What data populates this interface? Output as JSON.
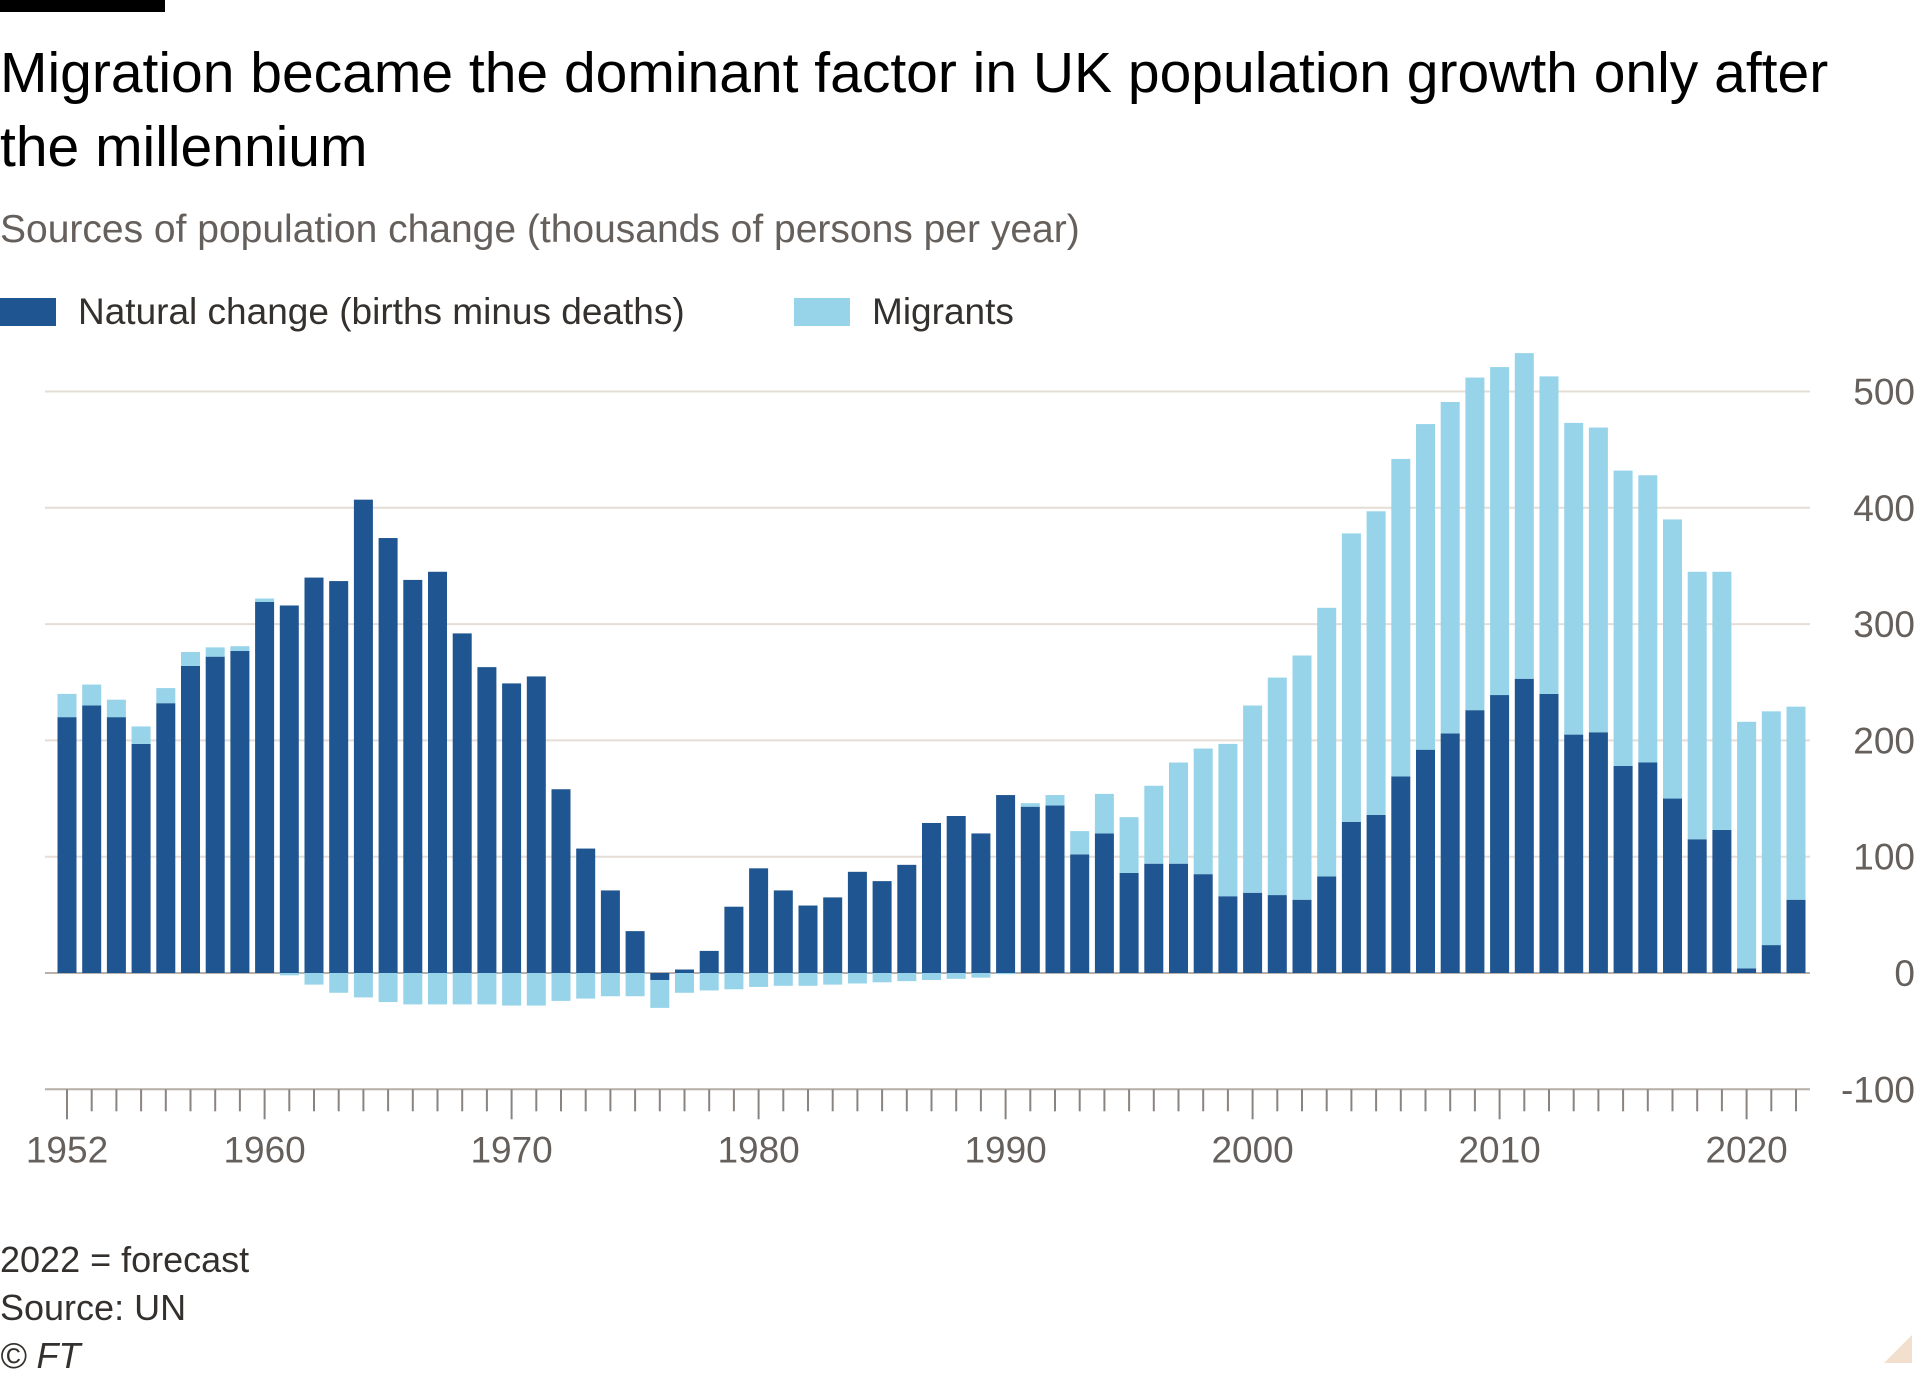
{
  "title": "Migration became the dominant factor in UK population growth only after the millennium",
  "subtitle": "Sources of population change (thousands of persons per year)",
  "legend": {
    "natural": "Natural change (births minus deaths)",
    "migrants": "Migrants"
  },
  "colors": {
    "natural": "#1f5590",
    "migrants": "#97d4ea",
    "grid": "#e6ddd6",
    "axis_text": "#66605c",
    "tick": "#8a8480"
  },
  "notes": {
    "forecast": "2022 = forecast",
    "source": "Source: UN",
    "copyright": "© FT"
  },
  "chart_data": {
    "type": "bar",
    "stacked": true,
    "x_label_years": [
      "1952",
      "1960",
      "1970",
      "1980",
      "1990",
      "2000",
      "2010",
      "2020"
    ],
    "y_ticks": [
      "500",
      "400",
      "300",
      "200",
      "100",
      "0",
      "-100"
    ],
    "ylim": [
      -100,
      500
    ],
    "grid": true,
    "y_axis_side": "right",
    "x": [
      1952,
      1953,
      1954,
      1955,
      1956,
      1957,
      1958,
      1959,
      1960,
      1961,
      1962,
      1963,
      1964,
      1965,
      1966,
      1967,
      1968,
      1969,
      1970,
      1971,
      1972,
      1973,
      1974,
      1975,
      1976,
      1977,
      1978,
      1979,
      1980,
      1981,
      1982,
      1983,
      1984,
      1985,
      1986,
      1987,
      1988,
      1989,
      1990,
      1991,
      1992,
      1993,
      1994,
      1995,
      1996,
      1997,
      1998,
      1999,
      2000,
      2001,
      2002,
      2003,
      2004,
      2005,
      2006,
      2007,
      2008,
      2009,
      2010,
      2011,
      2012,
      2013,
      2014,
      2015,
      2016,
      2017,
      2018,
      2019,
      2020,
      2021,
      2022
    ],
    "series": [
      {
        "name": "Natural change (births minus deaths)",
        "values": [
          220,
          230,
          220,
          197,
          232,
          264,
          272,
          277,
          319,
          316,
          340,
          337,
          407,
          374,
          338,
          345,
          292,
          263,
          249,
          255,
          158,
          107,
          71,
          36,
          -6,
          3,
          19,
          57,
          90,
          71,
          58,
          65,
          87,
          79,
          93,
          129,
          135,
          120,
          153,
          143,
          144,
          102,
          120,
          86,
          94,
          94,
          85,
          66,
          69,
          67,
          63,
          83,
          130,
          136,
          169,
          192,
          206,
          226,
          239,
          253,
          240,
          205,
          207,
          178,
          181,
          150,
          115,
          123,
          4,
          24,
          63
        ]
      },
      {
        "name": "Migrants",
        "values": [
          20,
          18,
          15,
          15,
          13,
          12,
          8,
          4,
          3,
          -2,
          -10,
          -17,
          -21,
          -25,
          -27,
          -27,
          -27,
          -27,
          -28,
          -28,
          -24,
          -22,
          -20,
          -20,
          -24,
          -17,
          -15,
          -14,
          -12,
          -11,
          -11,
          -10,
          -9,
          -8,
          -7,
          -6,
          -5,
          -4,
          -1,
          3,
          9,
          20,
          34,
          48,
          67,
          87,
          108,
          131,
          161,
          187,
          210,
          231,
          248,
          261,
          273,
          280,
          285,
          286,
          282,
          280,
          273,
          268,
          262,
          254,
          247,
          240,
          230,
          222,
          212,
          201,
          166
        ]
      }
    ]
  }
}
